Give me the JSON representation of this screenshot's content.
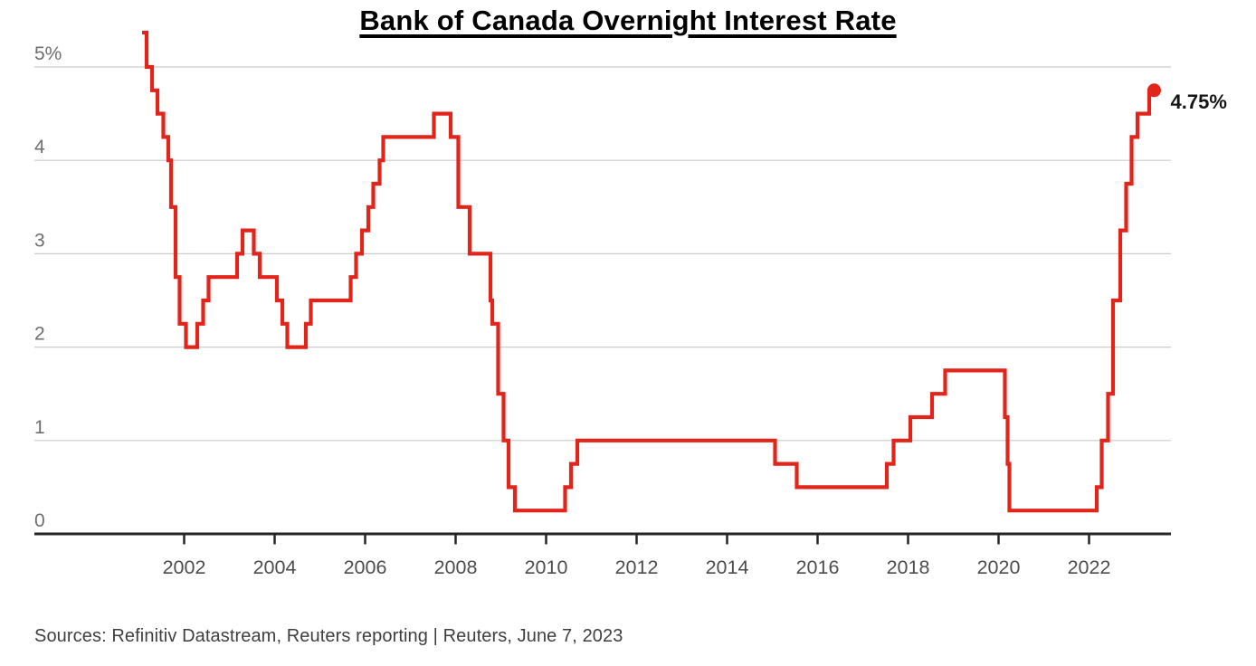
{
  "title": "Bank of Canada Overnight Interest Rate",
  "source_line": "Sources: Refinitiv Datastream, Reuters reporting | Reuters, June 7, 2023",
  "colors": {
    "line": "#e1251b",
    "grid": "#cbcbcb",
    "axis": "#242424",
    "x_label": "#4d4d4d",
    "y_label": "#6e6e6e",
    "end_label": "#151515",
    "title_text": "#000000",
    "source_text": "#3f3f3f",
    "background": "#ffffff"
  },
  "chart_data": {
    "type": "line",
    "subtype": "step",
    "title": "Bank of Canada Overnight Interest Rate",
    "xlabel": "",
    "ylabel": "",
    "unit": "%",
    "grid": "horizontal",
    "legend": "none",
    "xlim": [
      2000.6,
      2023.9
    ],
    "ylim": [
      0,
      5.4
    ],
    "x_ticks": [
      2002,
      2004,
      2006,
      2008,
      2010,
      2012,
      2014,
      2016,
      2018,
      2020,
      2022
    ],
    "y_ticks": [
      {
        "label": "5%",
        "value": 5
      },
      {
        "label": "4",
        "value": 4
      },
      {
        "label": "3",
        "value": 3
      },
      {
        "label": "2",
        "value": 2
      },
      {
        "label": "1",
        "value": 1
      },
      {
        "label": "0",
        "value": 0
      }
    ],
    "steps": [
      [
        2001.07,
        5.5
      ],
      [
        2001.17,
        5.0
      ],
      [
        2001.29,
        4.75
      ],
      [
        2001.41,
        4.5
      ],
      [
        2001.54,
        4.25
      ],
      [
        2001.65,
        4.0
      ],
      [
        2001.71,
        3.5
      ],
      [
        2001.81,
        2.75
      ],
      [
        2001.9,
        2.25
      ],
      [
        2002.04,
        2.0
      ],
      [
        2002.29,
        2.25
      ],
      [
        2002.42,
        2.5
      ],
      [
        2002.54,
        2.75
      ],
      [
        2003.17,
        3.0
      ],
      [
        2003.29,
        3.25
      ],
      [
        2003.54,
        3.0
      ],
      [
        2003.67,
        2.75
      ],
      [
        2004.05,
        2.5
      ],
      [
        2004.17,
        2.25
      ],
      [
        2004.28,
        2.0
      ],
      [
        2004.69,
        2.25
      ],
      [
        2004.8,
        2.5
      ],
      [
        2005.68,
        2.75
      ],
      [
        2005.8,
        3.0
      ],
      [
        2005.93,
        3.25
      ],
      [
        2006.07,
        3.5
      ],
      [
        2006.18,
        3.75
      ],
      [
        2006.32,
        4.0
      ],
      [
        2006.4,
        4.25
      ],
      [
        2007.52,
        4.5
      ],
      [
        2007.89,
        4.25
      ],
      [
        2008.06,
        3.5
      ],
      [
        2008.31,
        3.0
      ],
      [
        2008.77,
        2.5
      ],
      [
        2008.81,
        2.25
      ],
      [
        2008.94,
        1.5
      ],
      [
        2009.06,
        1.0
      ],
      [
        2009.17,
        0.5
      ],
      [
        2009.31,
        0.25
      ],
      [
        2010.42,
        0.5
      ],
      [
        2010.55,
        0.75
      ],
      [
        2010.69,
        1.0
      ],
      [
        2015.06,
        0.75
      ],
      [
        2015.54,
        0.5
      ],
      [
        2017.53,
        0.75
      ],
      [
        2017.68,
        1.0
      ],
      [
        2018.05,
        1.25
      ],
      [
        2018.53,
        1.5
      ],
      [
        2018.82,
        1.75
      ],
      [
        2020.14,
        1.25
      ],
      [
        2020.2,
        0.75
      ],
      [
        2020.24,
        0.25
      ],
      [
        2022.17,
        0.5
      ],
      [
        2022.28,
        1.0
      ],
      [
        2022.42,
        1.5
      ],
      [
        2022.53,
        2.5
      ],
      [
        2022.69,
        3.25
      ],
      [
        2022.82,
        3.75
      ],
      [
        2022.94,
        4.25
      ],
      [
        2023.07,
        4.5
      ],
      [
        2023.33,
        4.75
      ]
    ],
    "end": {
      "x": 2023.44,
      "y": 4.75,
      "label": "4.75%"
    }
  }
}
